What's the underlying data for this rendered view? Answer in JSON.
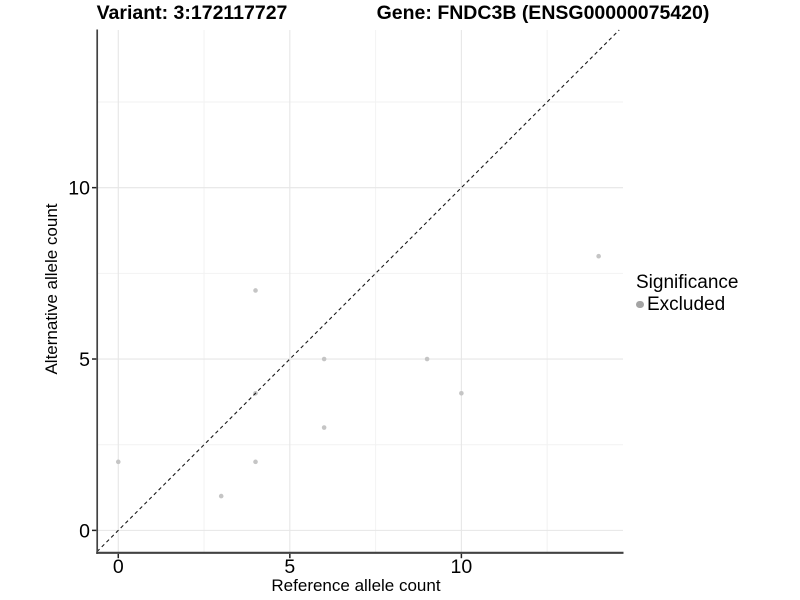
{
  "titles": {
    "variant": "Variant: 3:172117727",
    "gene": "Gene: FNDC3B (ENSG00000075420)"
  },
  "axes": {
    "x_label": "Reference allele count",
    "y_label": "Alternative allele count"
  },
  "legend": {
    "title": "Significance",
    "items": [
      {
        "label": "Excluded",
        "color": "#a4a4a4"
      }
    ],
    "position": "right"
  },
  "colors": {
    "point": "#c5c5c5",
    "legend_marker": "#a4a4a4",
    "grid_major": "#e6e6e6",
    "grid_minor": "#f2f2f2",
    "axis_line": "#424242",
    "tick": "#222222",
    "reference_line": "#1a1a1a",
    "text": "#000000"
  },
  "chart_data": {
    "type": "scatter",
    "title_left": "Variant: 3:172117727",
    "title_right": "Gene: FNDC3B (ENSG00000075420)",
    "xlabel": "Reference allele count",
    "ylabel": "Alternative allele count",
    "series": [
      {
        "name": "Excluded",
        "color": "#c5c5c5",
        "points": [
          [
            0,
            2
          ],
          [
            3,
            1
          ],
          [
            4,
            2
          ],
          [
            4,
            4
          ],
          [
            4,
            7
          ],
          [
            6,
            3
          ],
          [
            6,
            5
          ],
          [
            9,
            5
          ],
          [
            10,
            4
          ],
          [
            14,
            8
          ]
        ]
      }
    ],
    "reference_line": {
      "type": "identity",
      "slope": 1,
      "intercept": 0,
      "style": "dashed",
      "color": "#1a1a1a"
    },
    "xlim": [
      -0.62,
      14.71
    ],
    "ylim": [
      -0.66,
      14.6
    ],
    "x_major_ticks": [
      0,
      5,
      10
    ],
    "y_major_ticks": [
      0,
      5,
      10
    ],
    "x_minor_gridlines": [
      2.5,
      7.5,
      12.5
    ],
    "y_minor_gridlines": [
      2.5,
      7.5,
      12.5
    ],
    "grid": true,
    "legend_position": "right"
  }
}
